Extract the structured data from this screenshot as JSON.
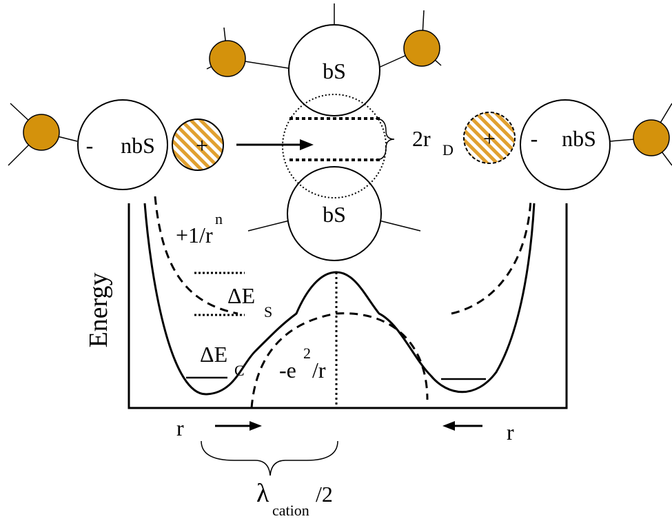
{
  "molecules": {
    "bridge_top": "bS",
    "bridge_bottom": "bS",
    "left": {
      "label": "nbS",
      "charge": "-"
    },
    "right": {
      "label": "nbS",
      "charge": "-"
    }
  },
  "cations": {
    "left": "+",
    "right": "+"
  },
  "gap": {
    "text": "2r",
    "sub": "D"
  },
  "energy_plot": {
    "axis_label": "Energy",
    "repulsion": {
      "text": "+1/r",
      "sup": "n"
    },
    "solvation": {
      "text": "ΔE",
      "sub": "S"
    },
    "coulomb_well": {
      "text": "ΔE",
      "sub": "C"
    },
    "attraction": {
      "text": "-e",
      "sup": "2",
      "tail": "/r"
    },
    "r_left": "r",
    "r_right": "r",
    "wavelength": {
      "text": "λ",
      "sub": "cation",
      "tail": "/2"
    }
  }
}
